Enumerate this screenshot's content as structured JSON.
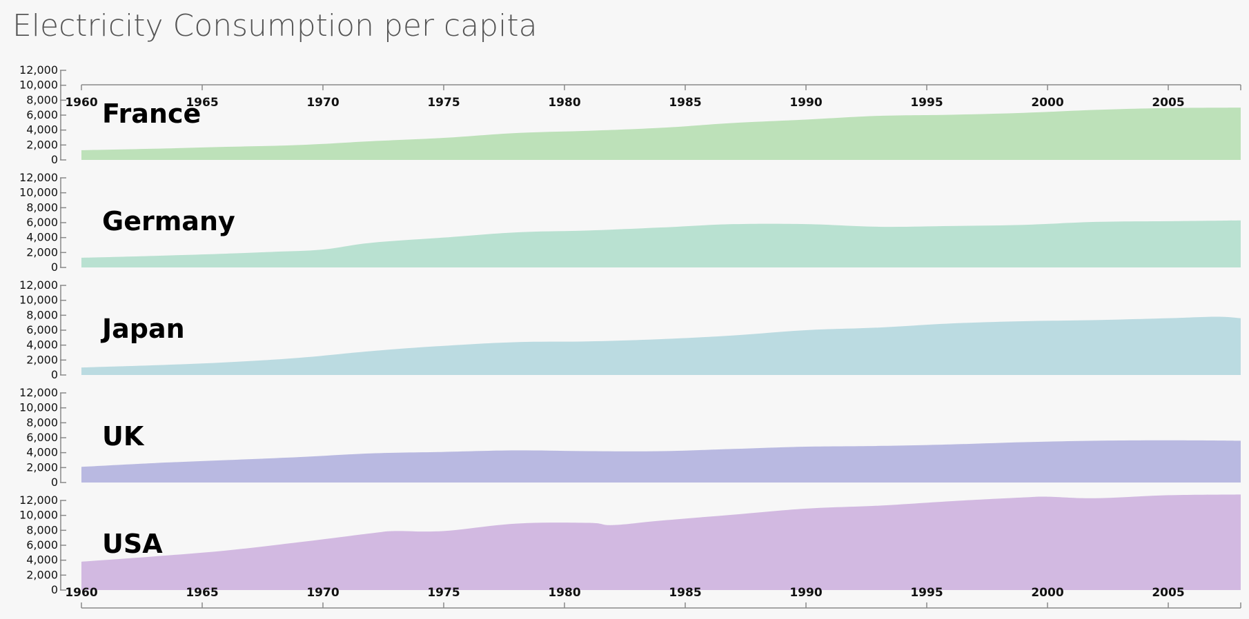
{
  "title": "Electricity Consumption per capita",
  "chart_data": {
    "type": "area",
    "x_ticks": [
      1960,
      1965,
      1970,
      1975,
      1980,
      1985,
      1990,
      1995,
      2000,
      2005
    ],
    "xlim": [
      1960,
      2008
    ],
    "ylim": [
      0,
      12000
    ],
    "y_ticks": [
      0,
      2000,
      4000,
      6000,
      8000,
      10000,
      12000
    ],
    "y_tick_labels": [
      "0",
      "2,000",
      "4,000",
      "6,000",
      "8,000",
      "10,000",
      "12,000"
    ],
    "x_axis_top_visible": true,
    "x_axis_bottom_visible": true,
    "series": [
      {
        "name": "France",
        "color": "#bde1b9",
        "x": [
          1960,
          1963,
          1966,
          1969,
          1972,
          1975,
          1978,
          1981,
          1984,
          1987,
          1990,
          1993,
          1996,
          1999,
          2002,
          2005,
          2008
        ],
        "values": [
          1300,
          1500,
          1750,
          2000,
          2500,
          2950,
          3600,
          3900,
          4300,
          4950,
          5400,
          5900,
          6050,
          6300,
          6700,
          6950,
          7000
        ]
      },
      {
        "name": "Germany",
        "color": "#b9e1d1",
        "x": [
          1960,
          1963,
          1966,
          1968,
          1970,
          1972,
          1975,
          1978,
          1981,
          1984,
          1987,
          1990,
          1993,
          1996,
          1999,
          2002,
          2005,
          2008
        ],
        "values": [
          1300,
          1550,
          1850,
          2100,
          2400,
          3300,
          4000,
          4700,
          4950,
          5350,
          5800,
          5800,
          5450,
          5550,
          5700,
          6100,
          6200,
          6300
        ]
      },
      {
        "name": "Japan",
        "color": "#bbdbe1",
        "x": [
          1960,
          1963,
          1966,
          1969,
          1972,
          1975,
          1978,
          1981,
          1984,
          1987,
          1990,
          1993,
          1996,
          1999,
          2002,
          2005,
          2007,
          2008
        ],
        "values": [
          1000,
          1300,
          1700,
          2300,
          3200,
          3900,
          4400,
          4500,
          4800,
          5300,
          6000,
          6350,
          6900,
          7200,
          7350,
          7600,
          7800,
          7600
        ]
      },
      {
        "name": "UK",
        "color": "#b9b9e1",
        "x": [
          1960,
          1963,
          1966,
          1969,
          1972,
          1975,
          1978,
          1981,
          1984,
          1987,
          1990,
          1993,
          1996,
          1999,
          2002,
          2005,
          2008
        ],
        "values": [
          2100,
          2600,
          3000,
          3400,
          3900,
          4100,
          4300,
          4200,
          4200,
          4500,
          4800,
          4900,
          5100,
          5400,
          5600,
          5650,
          5600
        ]
      },
      {
        "name": "USA",
        "color": "#d2b9e1",
        "x": [
          1960,
          1963,
          1966,
          1969,
          1972,
          1973,
          1975,
          1978,
          1981,
          1982,
          1984,
          1987,
          1990,
          1993,
          1996,
          1999,
          2000,
          2002,
          2005,
          2008
        ],
        "values": [
          3800,
          4500,
          5300,
          6400,
          7600,
          7900,
          7900,
          8900,
          9000,
          8700,
          9300,
          10100,
          10900,
          11300,
          11900,
          12400,
          12500,
          12300,
          12700,
          12800
        ]
      }
    ]
  }
}
